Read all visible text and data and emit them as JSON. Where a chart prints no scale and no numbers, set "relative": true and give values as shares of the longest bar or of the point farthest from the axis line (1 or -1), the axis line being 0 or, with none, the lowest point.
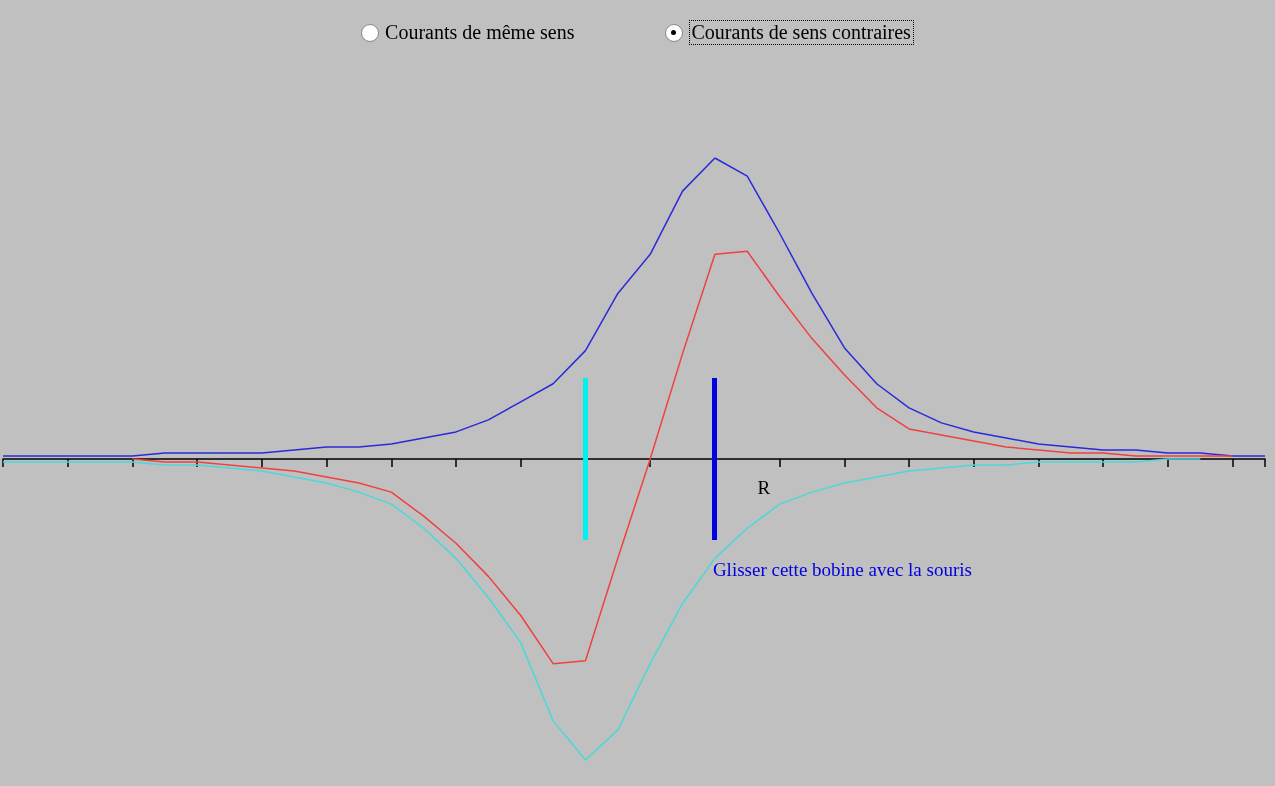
{
  "chart_data": {
    "type": "line",
    "relative": true,
    "annotations": [
      "Courants de même sens",
      "Courants de sens contraires",
      "Glisser cette bobine avec la souris",
      "R"
    ],
    "categories": [
      null,
      null,
      null,
      null,
      null,
      null,
      null,
      null,
      null,
      null,
      null,
      null,
      null,
      null,
      null,
      null,
      null,
      null,
      null,
      null,
      null,
      null,
      null,
      null,
      null,
      null,
      null,
      null,
      null,
      null,
      null,
      null,
      null,
      null,
      null,
      null,
      null,
      null,
      null,
      null
    ],
    "series": [
      {
        "color": "#2a2ad8",
        "values": [
          0.01,
          0.01,
          0.01,
          0.01,
          0.01,
          0.02,
          0.02,
          0.02,
          0.02,
          0.03,
          0.04,
          0.04,
          0.05,
          0.07,
          0.09,
          0.13,
          0.19,
          0.25,
          0.36,
          0.55,
          0.68,
          0.89,
          1,
          0.94,
          0.75,
          0.55,
          0.37,
          0.25,
          0.17,
          0.12,
          0.09,
          0.07,
          0.05,
          0.04,
          0.03,
          0.03,
          0.02,
          0.02,
          0.01,
          0.01
        ]
      },
      {
        "color": "#4ad8d8",
        "values": [
          -0.01,
          -0.01,
          -0.01,
          -0.01,
          -0.01,
          -0.02,
          -0.02,
          -0.03,
          -0.04,
          -0.06,
          -0.08,
          -0.11,
          -0.15,
          -0.23,
          -0.33,
          -0.46,
          -0.61,
          -0.87,
          -1,
          -0.9,
          -0.68,
          -0.48,
          -0.33,
          -0.23,
          -0.15,
          -0.11,
          -0.08,
          -0.06,
          -0.04,
          -0.03,
          -0.02,
          -0.02,
          -0.01,
          -0.01,
          -0.01,
          -0.01,
          0,
          0,
          null,
          null
        ]
      },
      {
        "color": "#f04040",
        "values": [
          null,
          null,
          null,
          null,
          0,
          -0.01,
          -0.01,
          -0.02,
          -0.03,
          -0.04,
          -0.06,
          -0.08,
          -0.11,
          -0.19,
          -0.28,
          -0.39,
          -0.52,
          -0.68,
          -0.67,
          -0.33,
          0,
          0.35,
          0.68,
          0.69,
          0.54,
          0.4,
          0.28,
          0.17,
          0.1,
          0.08,
          0.06,
          0.04,
          0.03,
          0.02,
          0.02,
          0.01,
          0.01,
          0.01,
          0.01,
          null
        ]
      }
    ]
  }
}
